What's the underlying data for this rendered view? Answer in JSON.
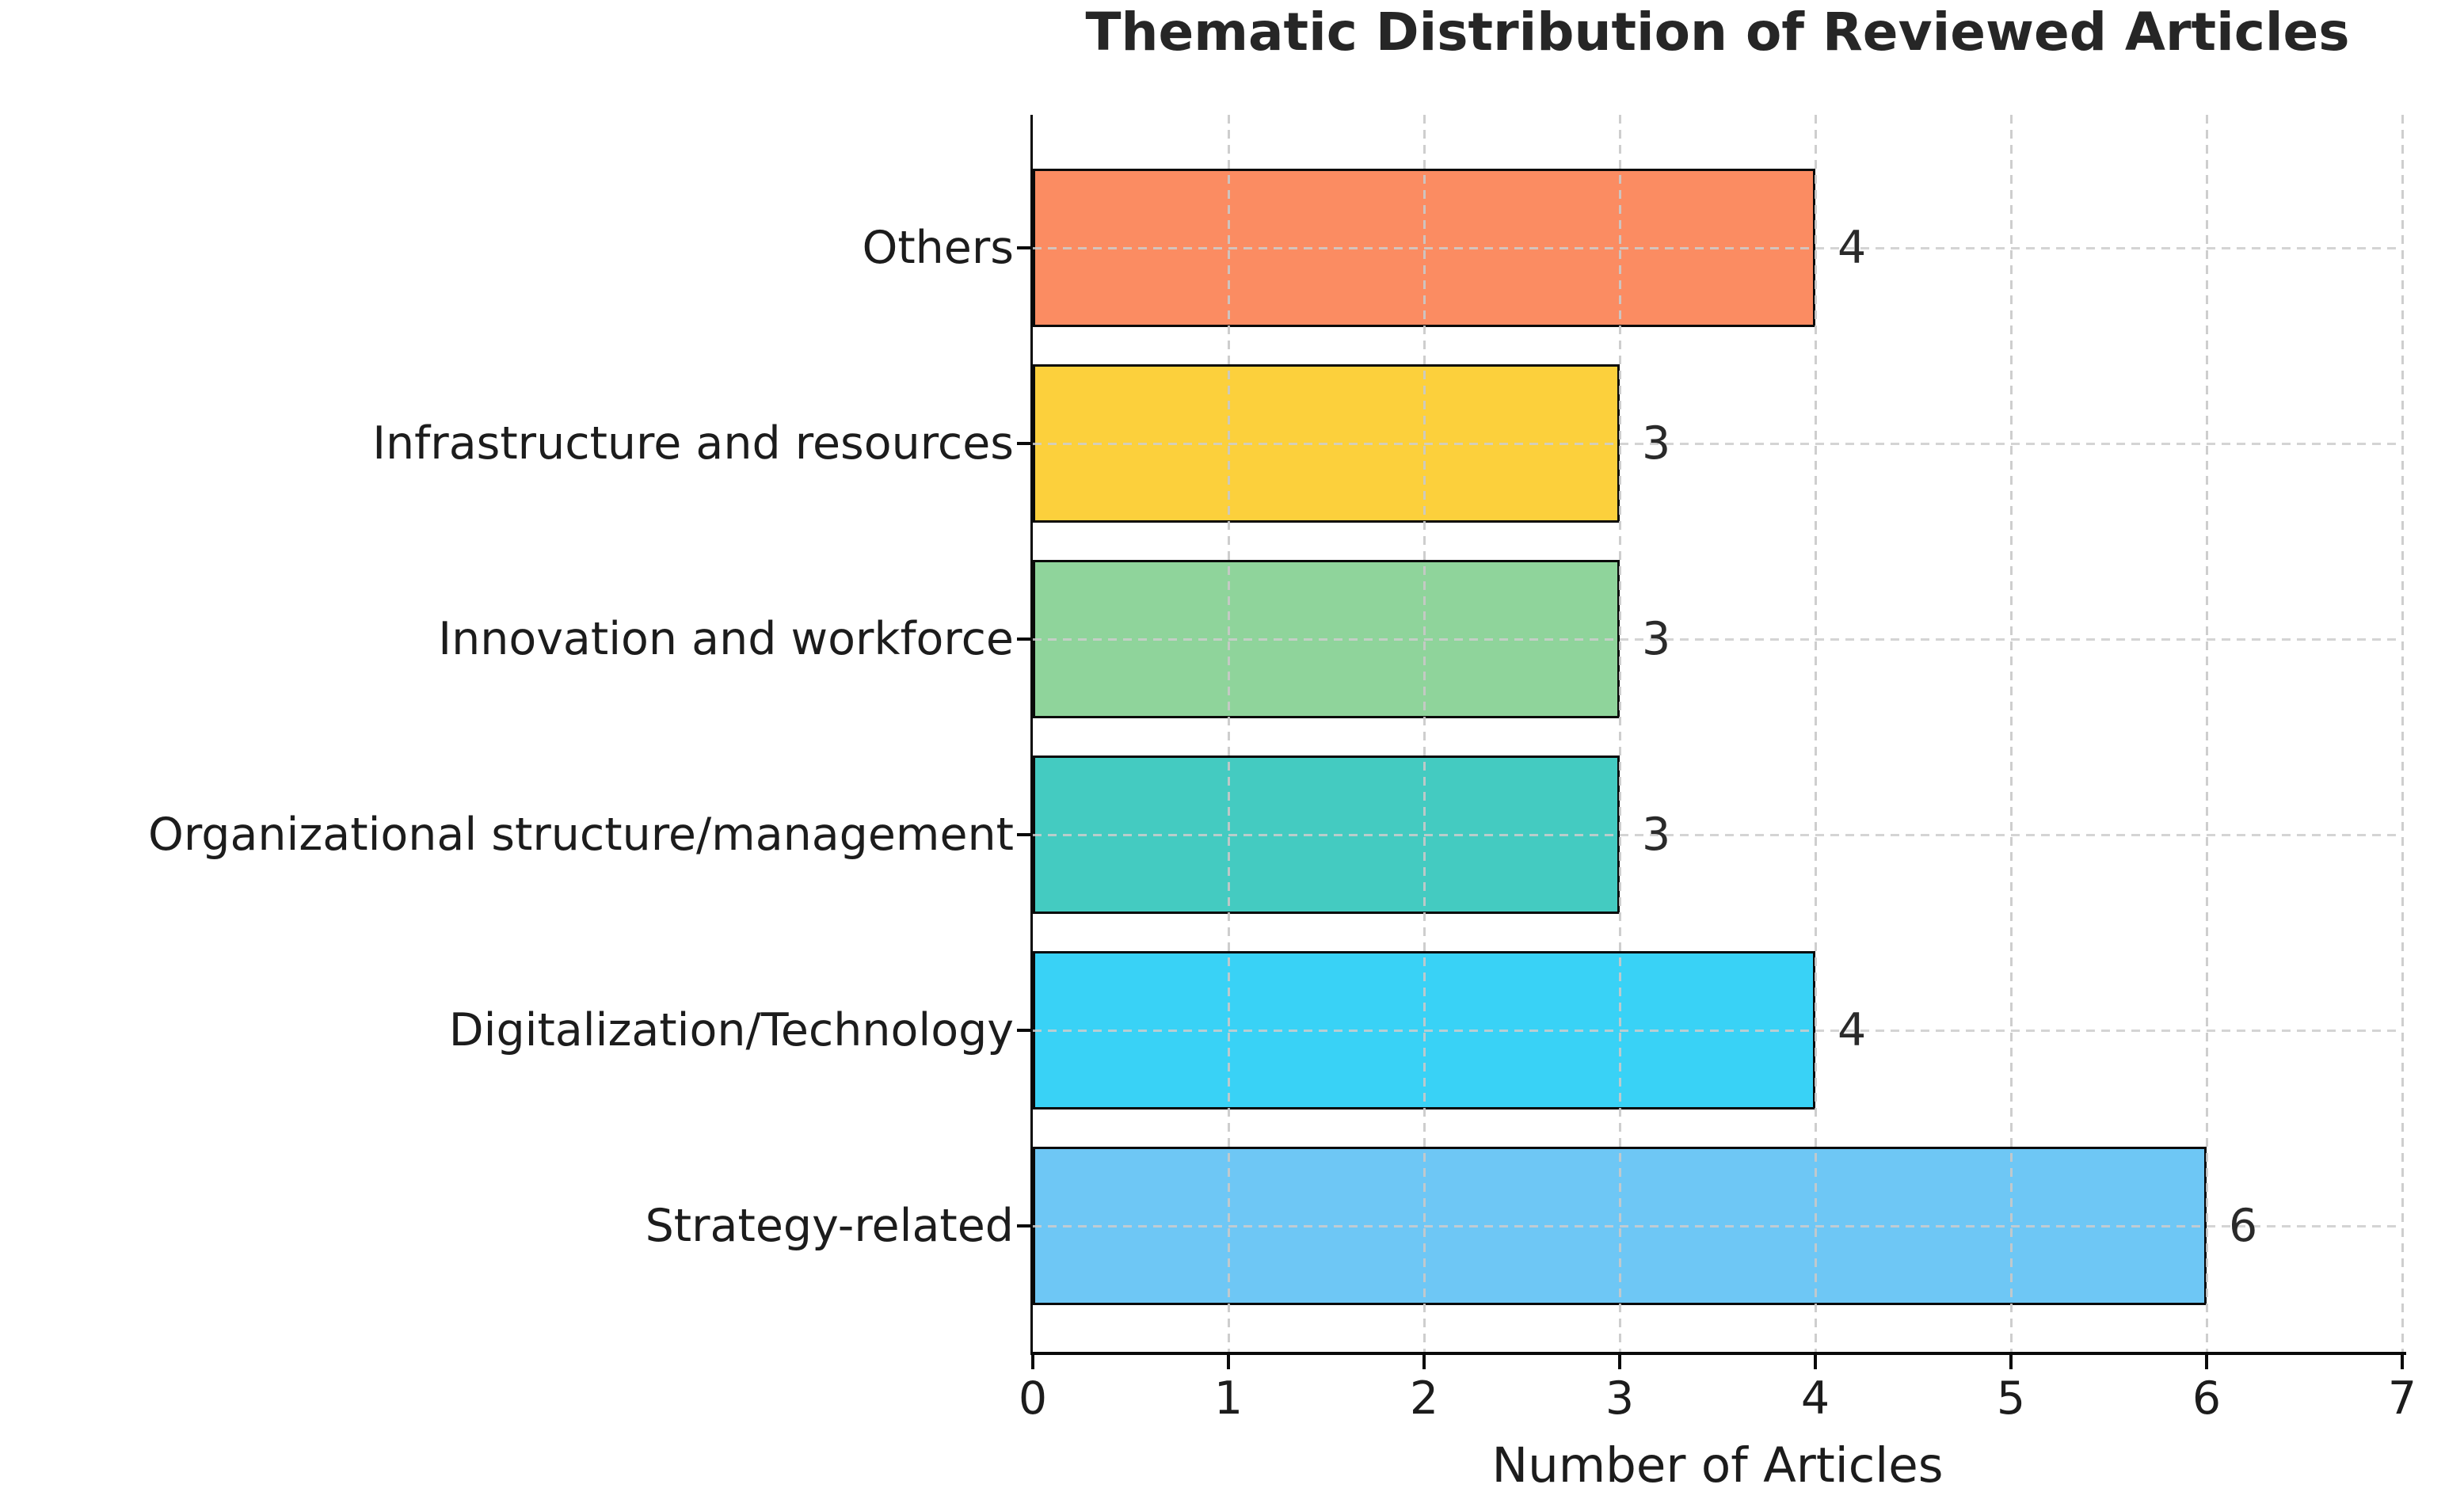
{
  "title": "Thematic Distribution of Reviewed Articles",
  "chart_data": {
    "type": "bar",
    "orientation": "horizontal",
    "title": "Thematic Distribution of Reviewed Articles",
    "xlabel": "Number of Articles",
    "ylabel": "",
    "categories": [
      "Others",
      "Infrastructure and resources",
      "Innovation and workforce",
      "Organizational structure/management",
      "Digitalization/Technology",
      "Strategy-related"
    ],
    "values": [
      4,
      3,
      3,
      3,
      4,
      6
    ],
    "value_labels": [
      "4",
      "3",
      "3",
      "3",
      "4",
      "6"
    ],
    "bar_colors": [
      "#fb8c62",
      "#fcd03c",
      "#8fd49b",
      "#44cbc1",
      "#39d2f6",
      "#6ec7f5"
    ],
    "bar_edge_color": "#0a0a0a",
    "xlim": [
      0,
      7
    ],
    "x_ticks": [
      "0",
      "1",
      "2",
      "3",
      "4",
      "5",
      "6",
      "7"
    ],
    "grid": "dashed",
    "grid_color": "#c9c9c9",
    "text_color": "#1c1c1c",
    "legend_position": "none"
  }
}
